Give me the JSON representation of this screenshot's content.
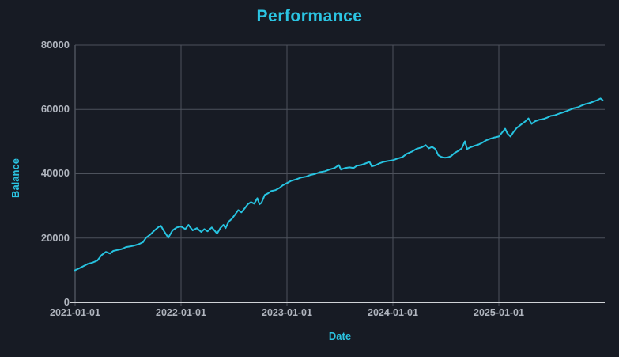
{
  "title": "Performance",
  "colors": {
    "background": "#171b24",
    "accent": "#2bc4e2",
    "line": "#27c3e0",
    "grid": "#4d525c",
    "axis_line": "#d0d3d7",
    "tick_text": "#b0b5be"
  },
  "chart_data": {
    "type": "line",
    "title": "Performance",
    "xlabel": "Date",
    "ylabel": "Balance",
    "legend": "none",
    "grid": true,
    "x_tick_labels": [
      "2021-01-01",
      "2022-01-01",
      "2023-01-01",
      "2024-01-01",
      "2025-01-01"
    ],
    "x_tick_years": [
      2021,
      2022,
      2023,
      2024,
      2025
    ],
    "x_gridline_years": [
      2022,
      2023,
      2024,
      2025
    ],
    "xlim_decimal_years": [
      2021,
      2026
    ],
    "y_tick_labels": [
      "0",
      "20000",
      "40000",
      "60000",
      "80000"
    ],
    "y_tick_values": [
      0,
      20000,
      40000,
      60000,
      80000
    ],
    "ylim": [
      0,
      80000
    ],
    "series": [
      {
        "name": "Balance",
        "x_decimal_years": [
          2021.0,
          2021.04,
          2021.08,
          2021.12,
          2021.16,
          2021.21,
          2021.25,
          2021.29,
          2021.33,
          2021.36,
          2021.4,
          2021.44,
          2021.48,
          2021.52,
          2021.56,
          2021.6,
          2021.64,
          2021.67,
          2021.71,
          2021.75,
          2021.79,
          2021.81,
          2021.84,
          2021.88,
          2021.92,
          2021.96,
          2022.0,
          2022.04,
          2022.07,
          2022.11,
          2022.15,
          2022.19,
          2022.22,
          2022.25,
          2022.29,
          2022.31,
          2022.34,
          2022.37,
          2022.4,
          2022.42,
          2022.45,
          2022.48,
          2022.51,
          2022.54,
          2022.57,
          2022.6,
          2022.63,
          2022.66,
          2022.69,
          2022.72,
          2022.74,
          2022.76,
          2022.79,
          2022.82,
          2022.85,
          2022.89,
          2022.93,
          2022.96,
          2023.0,
          2023.04,
          2023.09,
          2023.13,
          2023.18,
          2023.22,
          2023.27,
          2023.31,
          2023.36,
          2023.4,
          2023.45,
          2023.49,
          2023.51,
          2023.55,
          2023.59,
          2023.63,
          2023.66,
          2023.7,
          2023.74,
          2023.78,
          2023.8,
          2023.84,
          2023.87,
          2023.91,
          2023.96,
          2024.0,
          2024.04,
          2024.09,
          2024.13,
          2024.18,
          2024.22,
          2024.27,
          2024.31,
          2024.34,
          2024.37,
          2024.4,
          2024.43,
          2024.46,
          2024.49,
          2024.52,
          2024.55,
          2024.58,
          2024.62,
          2024.65,
          2024.68,
          2024.7,
          2024.73,
          2024.77,
          2024.81,
          2024.84,
          2024.88,
          2024.92,
          2024.96,
          2025.0,
          2025.03,
          2025.06,
          2025.08,
          2025.11,
          2025.14,
          2025.17,
          2025.21,
          2025.25,
          2025.28,
          2025.31,
          2025.34,
          2025.38,
          2025.42,
          2025.46,
          2025.49,
          2025.53,
          2025.57,
          2025.6,
          2025.64,
          2025.67,
          2025.71,
          2025.75,
          2025.78,
          2025.82,
          2025.85,
          2025.89,
          2025.93,
          2025.96,
          2025.98
        ],
        "values": [
          10000,
          10600,
          11300,
          12000,
          12300,
          13000,
          14700,
          15700,
          15200,
          16000,
          16300,
          16600,
          17200,
          17400,
          17700,
          18100,
          18700,
          20100,
          21100,
          22400,
          23500,
          23800,
          22100,
          20100,
          22400,
          23300,
          23600,
          22800,
          24100,
          22400,
          23100,
          21900,
          22800,
          22100,
          23300,
          22600,
          21400,
          23100,
          24100,
          23100,
          25100,
          26000,
          27300,
          28700,
          28000,
          29200,
          30500,
          31200,
          30700,
          32400,
          30500,
          31000,
          33400,
          33900,
          34600,
          34900,
          35600,
          36400,
          37100,
          37800,
          38300,
          38800,
          39100,
          39600,
          40000,
          40500,
          40800,
          41300,
          41800,
          42700,
          41300,
          41800,
          42000,
          41800,
          42500,
          42700,
          43200,
          43700,
          42300,
          42700,
          43200,
          43700,
          44000,
          44200,
          44700,
          45200,
          46200,
          46900,
          47700,
          48200,
          48900,
          47900,
          48400,
          47700,
          45700,
          45200,
          45000,
          45100,
          45500,
          46400,
          47200,
          47900,
          50100,
          47700,
          48200,
          48700,
          49100,
          49600,
          50400,
          50900,
          51300,
          51600,
          52800,
          54000,
          52600,
          51600,
          53100,
          54300,
          55300,
          56300,
          57200,
          55500,
          56300,
          56800,
          57000,
          57500,
          58000,
          58200,
          58700,
          59000,
          59500,
          59900,
          60400,
          60700,
          61200,
          61700,
          61900,
          62400,
          62900,
          63400,
          62900
        ]
      }
    ]
  }
}
